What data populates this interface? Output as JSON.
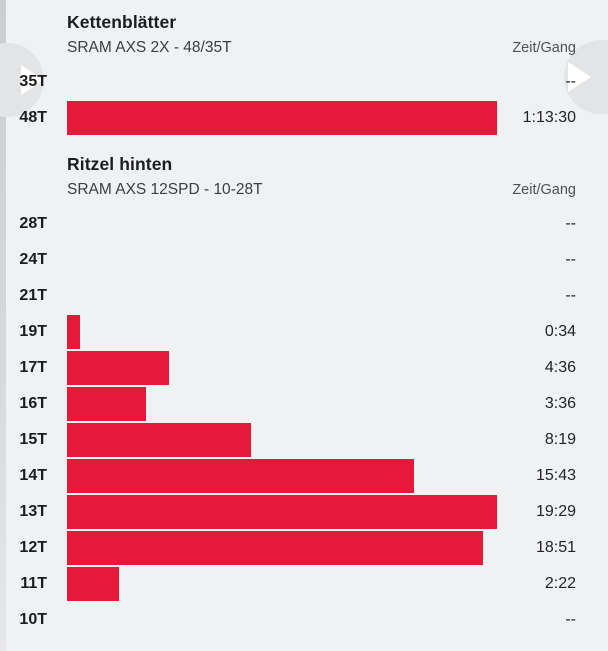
{
  "page": {
    "background": "#f0f1f3",
    "accent": "#e6193a",
    "nav_circle_color": "#e2e4e6"
  },
  "nav": {
    "prev_label": "previous",
    "next_label": "next"
  },
  "sections": [
    {
      "title": "Kettenblätter",
      "subtitle": "SRAM AXS 2X - 48/35T",
      "value_header": "Zeit/Gang",
      "rows": [
        {
          "label": "35T",
          "value": "--",
          "seconds": null
        },
        {
          "label": "48T",
          "value": "1:13:30",
          "seconds": 4410
        }
      ]
    },
    {
      "title": "Ritzel hinten",
      "subtitle": "SRAM AXS 12SPD - 10-28T",
      "value_header": "Zeit/Gang",
      "rows": [
        {
          "label": "28T",
          "value": "--",
          "seconds": null
        },
        {
          "label": "24T",
          "value": "--",
          "seconds": null
        },
        {
          "label": "21T",
          "value": "--",
          "seconds": null
        },
        {
          "label": "19T",
          "value": "0:34",
          "seconds": 34
        },
        {
          "label": "17T",
          "value": "4:36",
          "seconds": 276
        },
        {
          "label": "16T",
          "value": "3:36",
          "seconds": 216
        },
        {
          "label": "15T",
          "value": "8:19",
          "seconds": 499
        },
        {
          "label": "14T",
          "value": "15:43",
          "seconds": 943
        },
        {
          "label": "13T",
          "value": "19:29",
          "seconds": 1169
        },
        {
          "label": "12T",
          "value": "18:51",
          "seconds": 1131
        },
        {
          "label": "11T",
          "value": "2:22",
          "seconds": 142
        },
        {
          "label": "10T",
          "value": "--",
          "seconds": null
        }
      ]
    }
  ],
  "chart_data": [
    {
      "type": "bar",
      "orientation": "horizontal",
      "title": "Kettenblätter",
      "subtitle": "SRAM AXS 2X - 48/35T",
      "value_column_label": "Zeit/Gang",
      "categories": [
        "35T",
        "48T"
      ],
      "values_display": [
        "--",
        "1:13:30"
      ],
      "values_seconds": [
        null,
        4410
      ],
      "bar_color": "#e6193a",
      "normalization": "bars scaled to section maximum",
      "grid": false,
      "legend": false
    },
    {
      "type": "bar",
      "orientation": "horizontal",
      "title": "Ritzel hinten",
      "subtitle": "SRAM AXS 12SPD - 10-28T",
      "value_column_label": "Zeit/Gang",
      "categories": [
        "28T",
        "24T",
        "21T",
        "19T",
        "17T",
        "16T",
        "15T",
        "14T",
        "13T",
        "12T",
        "11T",
        "10T"
      ],
      "values_display": [
        "--",
        "--",
        "--",
        "0:34",
        "4:36",
        "3:36",
        "8:19",
        "15:43",
        "19:29",
        "18:51",
        "2:22",
        "--"
      ],
      "values_seconds": [
        null,
        null,
        null,
        34,
        276,
        216,
        499,
        943,
        1169,
        1131,
        142,
        null
      ],
      "bar_color": "#e6193a",
      "normalization": "bars scaled to section maximum",
      "grid": false,
      "legend": false
    }
  ]
}
